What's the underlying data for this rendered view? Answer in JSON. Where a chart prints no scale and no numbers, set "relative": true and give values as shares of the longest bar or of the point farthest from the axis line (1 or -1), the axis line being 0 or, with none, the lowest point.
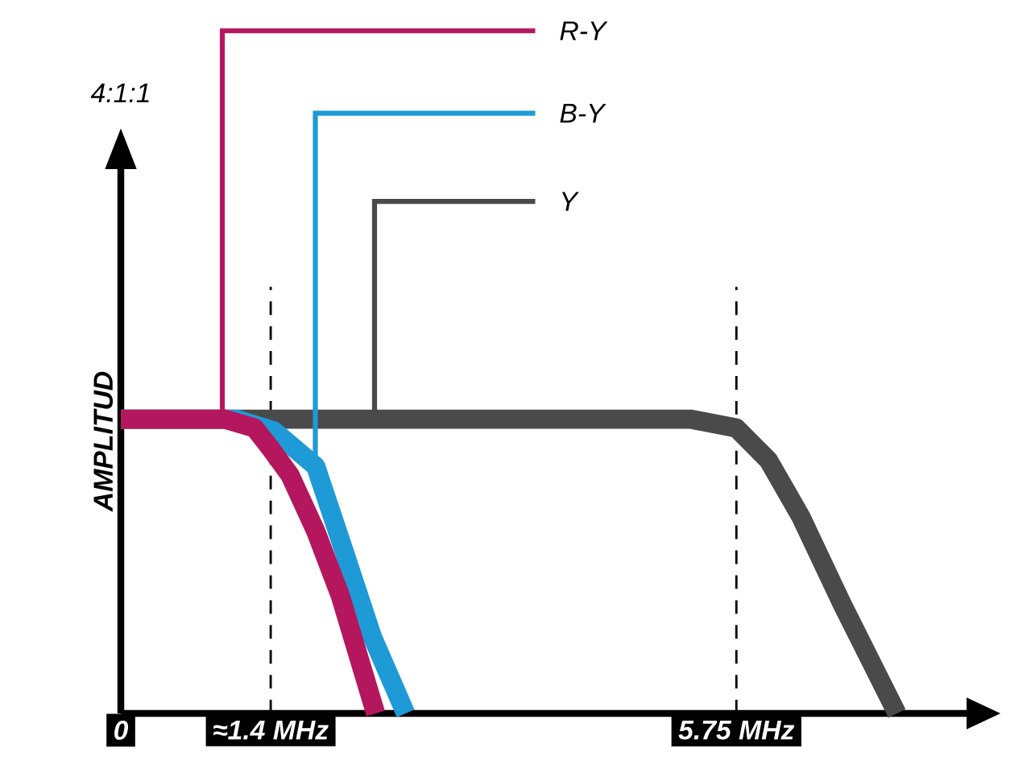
{
  "chart_data": {
    "type": "line",
    "title": "4:1:1",
    "ylabel": "AMPLITUD",
    "relative": true,
    "tick_labels": "x",
    "grid": false,
    "marker": "none",
    "line_style": "solid",
    "xlim": [
      0,
      7.9
    ],
    "xticks": [
      0,
      {
        "value": 1.4,
        "label": "≈1.4 MHz"
      },
      {
        "value": 5.75,
        "label": "5.75 MHz"
      }
    ],
    "ref_lines": [
      {
        "axis": "x",
        "value": 1.4,
        "line_style": "dashed",
        "color": "#000000"
      },
      {
        "axis": "x",
        "value": 5.75,
        "line_style": "dashed",
        "color": "#000000"
      }
    ],
    "series": [
      {
        "name": "R-Y",
        "color": "#b5175e",
        "x": [
          0,
          0.97,
          1.25,
          1.4,
          1.58,
          1.82,
          2.05,
          2.38
        ],
        "values": [
          1,
          1,
          0.97,
          0.9,
          0.81,
          0.62,
          0.4,
          0
        ]
      },
      {
        "name": "B-Y",
        "color": "#1e9ad6",
        "x": [
          0,
          1.08,
          1.43,
          1.82,
          2.05,
          2.35,
          2.66
        ],
        "values": [
          1,
          1,
          0.96,
          0.84,
          0.59,
          0.26,
          0
        ]
      },
      {
        "name": "Y",
        "color": "#4a4a4a",
        "x": [
          0,
          5.32,
          5.75,
          6.05,
          6.35,
          6.74,
          7.25
        ],
        "values": [
          1,
          1,
          0.97,
          0.86,
          0.67,
          0.37,
          0
        ]
      }
    ]
  }
}
